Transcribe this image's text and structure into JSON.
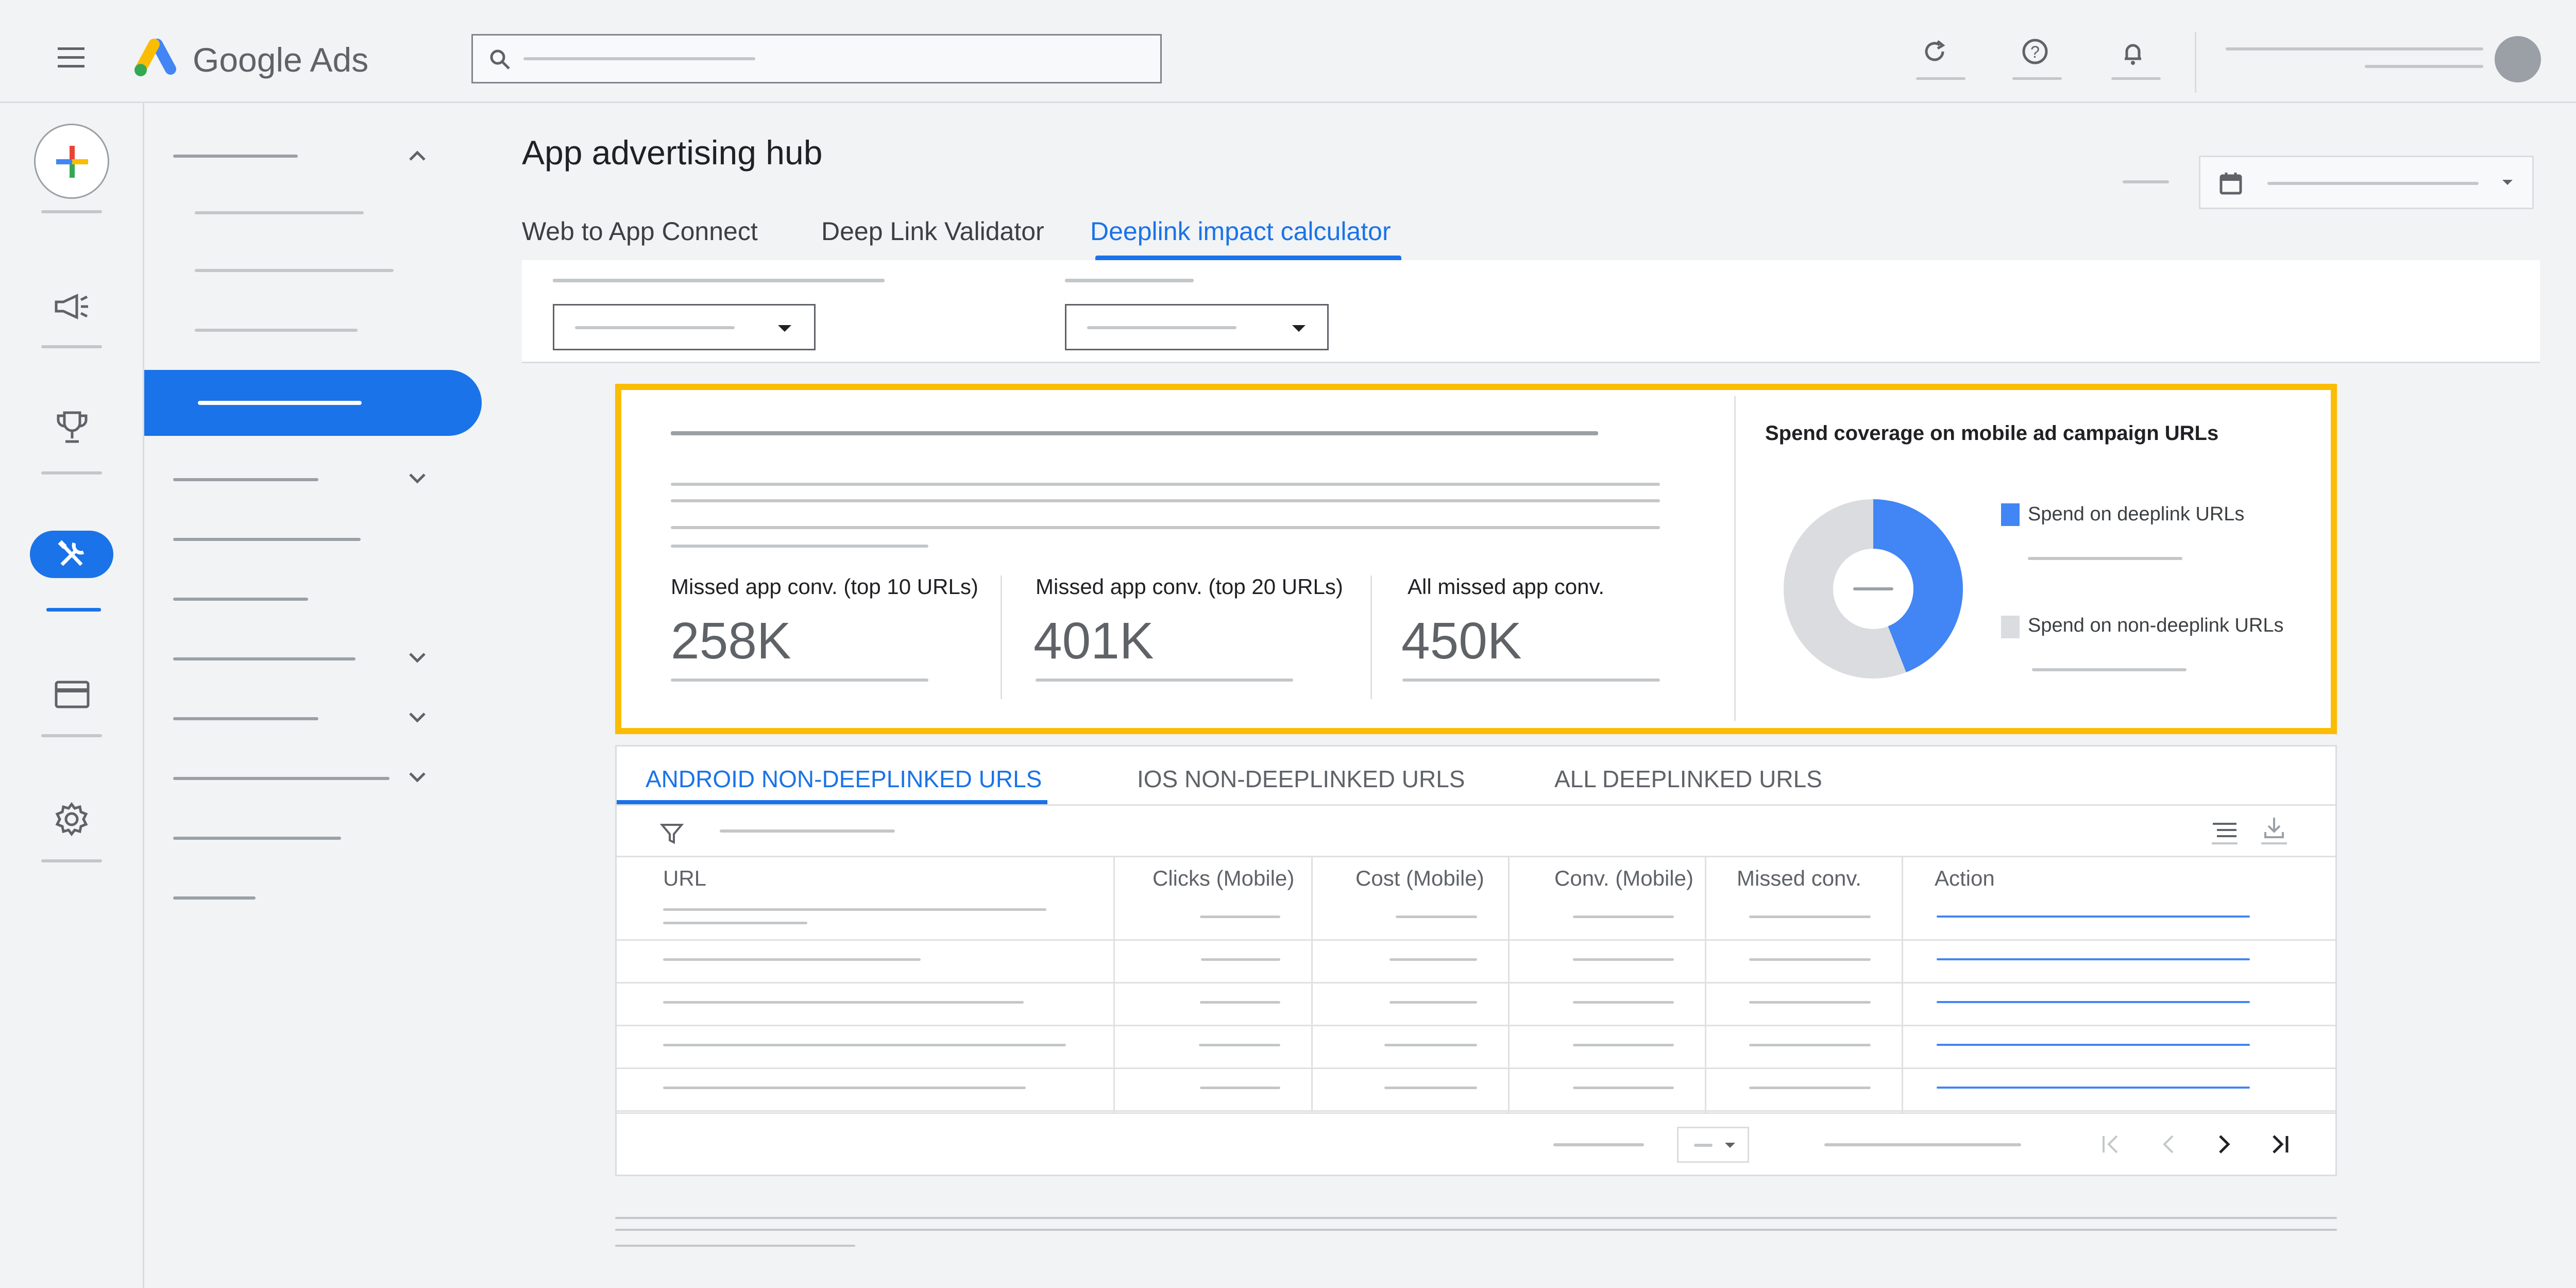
{
  "app": {
    "brand_name": "Google Ads"
  },
  "page": {
    "title": "App advertising hub"
  },
  "tabs": [
    {
      "label": "Web to App Connect"
    },
    {
      "label": "Deep Link Validator"
    },
    {
      "label": "Deeplink impact calculator"
    }
  ],
  "kpis": [
    {
      "title": "Missed app conv. (top 10 URLs)",
      "value": "258K"
    },
    {
      "title": "Missed app conv. (top 20 URLs)",
      "value": "401K"
    },
    {
      "title": "All missed app conv.",
      "value": "450K"
    }
  ],
  "donut": {
    "title": "Spend coverage on mobile ad campaign URLs",
    "legend": [
      {
        "label": "Spend on deeplink URLs",
        "color": "#4285f4"
      },
      {
        "label": "Spend on non-deeplink URLs",
        "color": "#dadce0"
      }
    ],
    "deeplink_share": 0.44
  },
  "table_tabs": [
    {
      "label": "Android non-deeplinked URLs"
    },
    {
      "label": "iOS non-deeplinked URLs"
    },
    {
      "label": "All deeplinked URLs"
    }
  ],
  "table": {
    "columns": [
      "URL",
      "Clicks (Mobile)",
      "Cost (Mobile)",
      "Conv. (Mobile)",
      "Missed conv.",
      "Action"
    ]
  },
  "colors": {
    "accent": "#1a73e8",
    "highlight": "#fbbc04"
  }
}
